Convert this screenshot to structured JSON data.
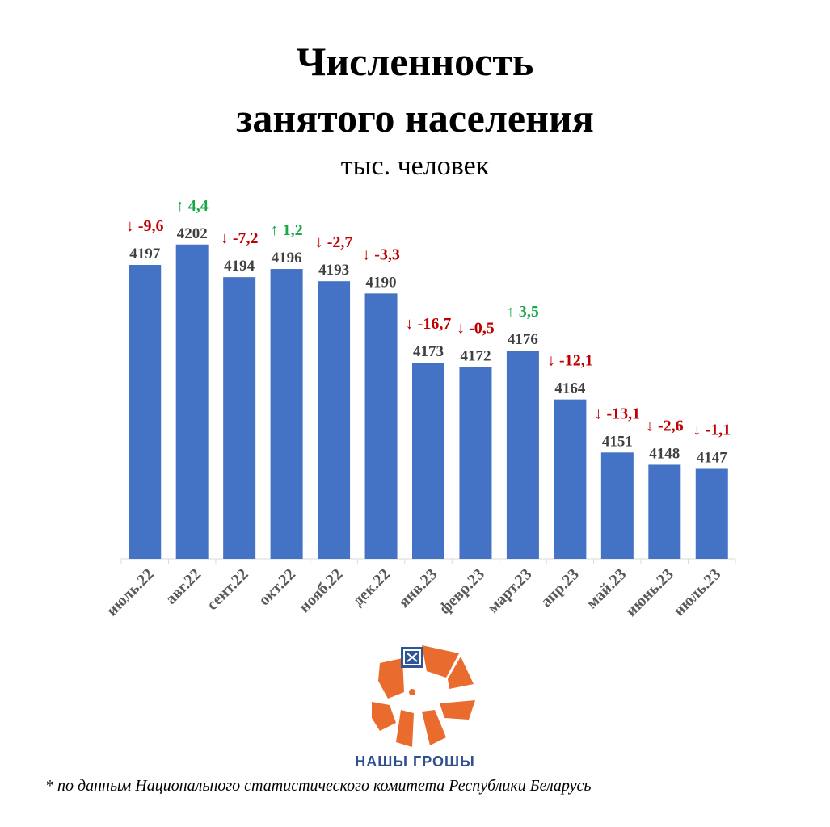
{
  "title_line1": "Численность",
  "title_line2": "занятого населения",
  "subtitle": "тыс. человек",
  "chart_data": {
    "type": "bar",
    "categories": [
      "июль.22",
      "авг.22",
      "сент.22",
      "окт.22",
      "нояб.22",
      "дек.22",
      "янв.23",
      "февр.23",
      "март.23",
      "апр.23",
      "май.23",
      "июнь.23",
      "июль.23"
    ],
    "values": [
      4197,
      4202,
      4194,
      4196,
      4193,
      4190,
      4173,
      4172,
      4176,
      4164,
      4151,
      4148,
      4147
    ],
    "changes": [
      "-9,6",
      "4,4",
      "-7,2",
      "1,2",
      "-2,7",
      "-3,3",
      "-16,7",
      "-0,5",
      "3,5",
      "-12,1",
      "-13,1",
      "-2,6",
      "-1,1"
    ],
    "change_dirs": [
      "down",
      "up",
      "down",
      "up",
      "down",
      "down",
      "down",
      "down",
      "up",
      "down",
      "down",
      "down",
      "down"
    ],
    "bar_color": "#4472c4",
    "up_color": "#1aa84a",
    "down_color": "#c00000",
    "grid": false
  },
  "brand": "НАШЫ ГРОШЫ",
  "footnote": "* по данным Национального статистического комитета Республики Беларусь"
}
